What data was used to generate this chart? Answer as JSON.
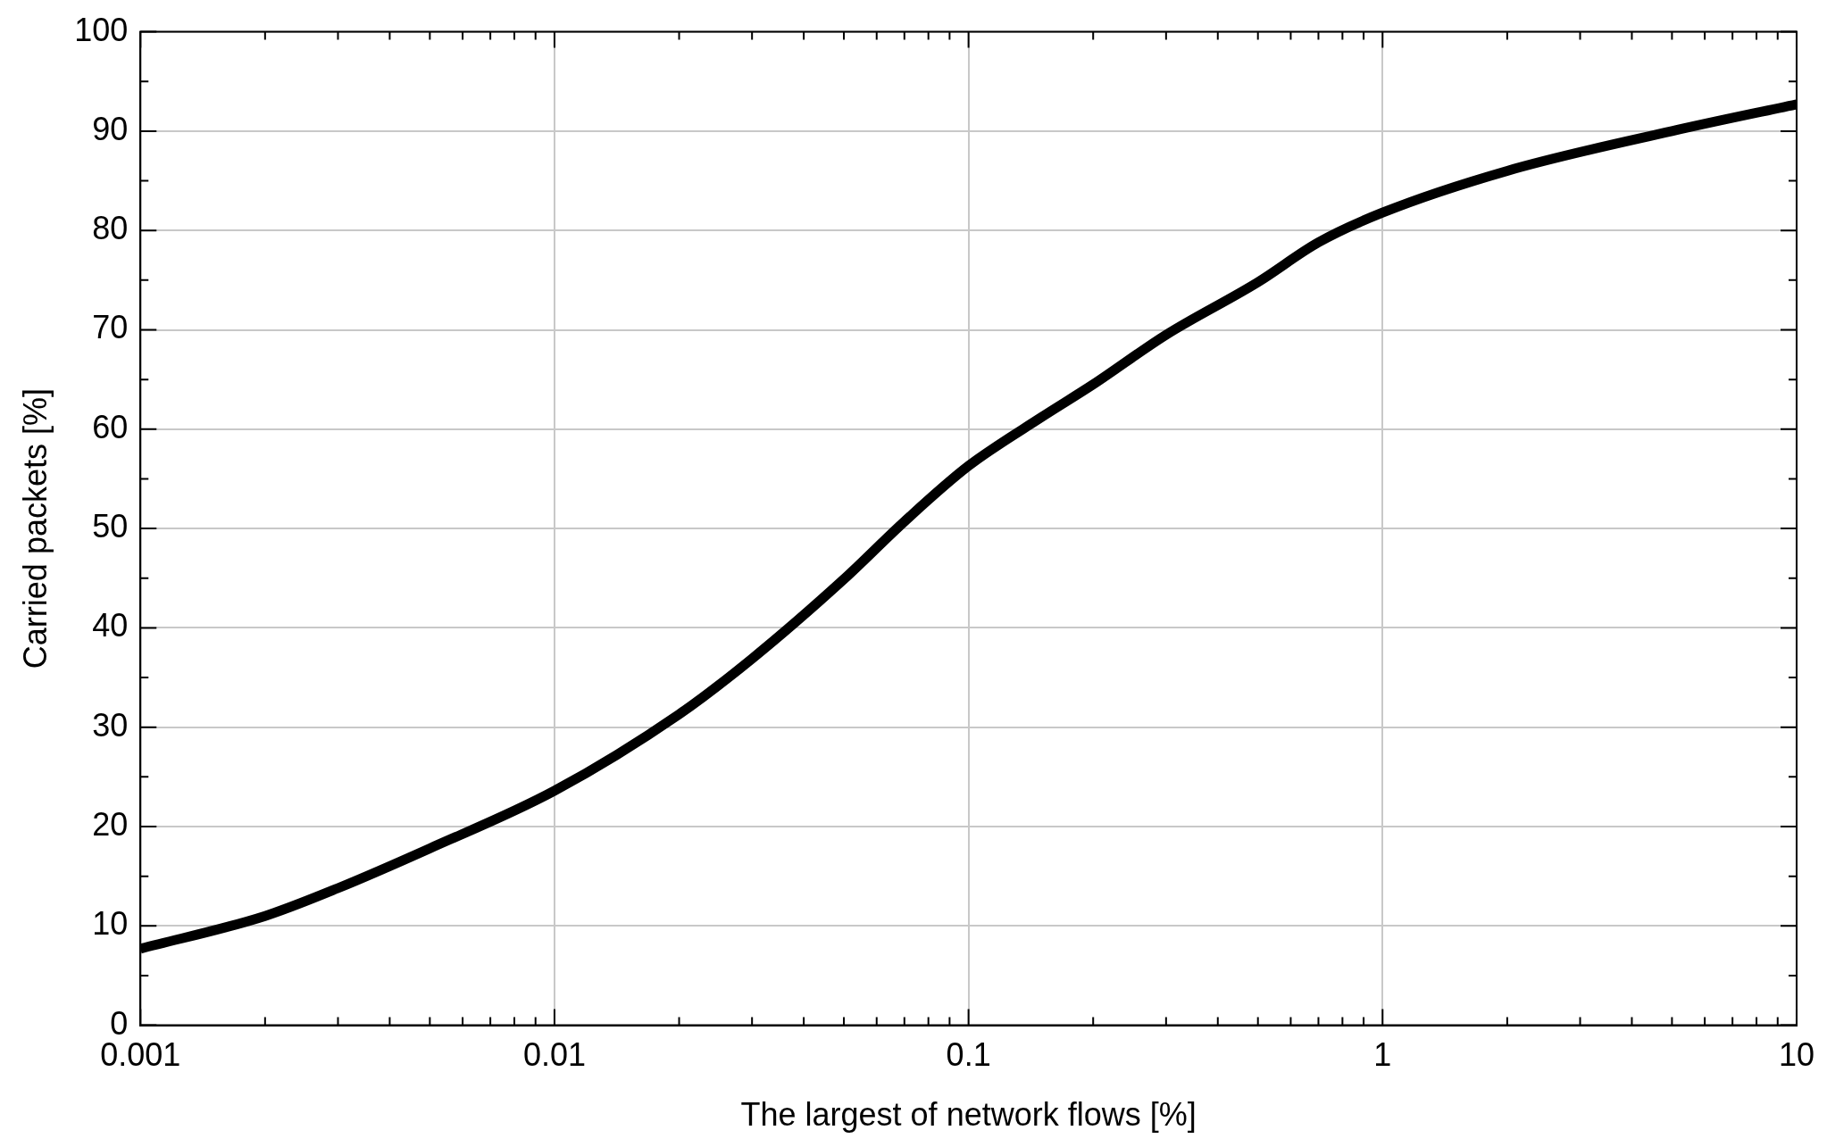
{
  "chart_data": {
    "type": "line",
    "xlabel": "The largest of network flows [%]",
    "ylabel": "Carried packets [%]",
    "log": "x",
    "grid": true,
    "legend": false,
    "marker": "none",
    "line_style": "solid",
    "x": [
      0.001,
      0.002,
      0.003,
      0.005,
      0.01,
      0.02,
      0.03,
      0.05,
      0.07,
      0.1,
      0.15,
      0.2,
      0.3,
      0.5,
      0.7,
      1,
      2,
      5,
      10
    ],
    "series": [
      {
        "color": "#000000",
        "values": [
          7.7,
          11,
          13.8,
          17.8,
          23.6,
          31.3,
          36.9,
          44.9,
          50.7,
          56.3,
          61.2,
          64.5,
          69.5,
          74.8,
          78.8,
          81.8,
          86,
          90,
          92.7
        ]
      }
    ],
    "xlim": [
      0.001,
      10
    ],
    "ylim": [
      0,
      100
    ],
    "xticks": [
      {
        "value": 0.001,
        "label": "0.001"
      },
      {
        "value": 0.002,
        "label": null
      },
      {
        "value": 0.003,
        "label": null
      },
      {
        "value": 0.004,
        "label": null
      },
      {
        "value": 0.005,
        "label": null
      },
      {
        "value": 0.006,
        "label": null
      },
      {
        "value": 0.007,
        "label": null
      },
      {
        "value": 0.008,
        "label": null
      },
      {
        "value": 0.009,
        "label": null
      },
      {
        "value": 0.01,
        "label": "0.01"
      },
      {
        "value": 0.02,
        "label": null
      },
      {
        "value": 0.03,
        "label": null
      },
      {
        "value": 0.04,
        "label": null
      },
      {
        "value": 0.05,
        "label": null
      },
      {
        "value": 0.06,
        "label": null
      },
      {
        "value": 0.07,
        "label": null
      },
      {
        "value": 0.08,
        "label": null
      },
      {
        "value": 0.09,
        "label": null
      },
      {
        "value": 0.1,
        "label": "0.1"
      },
      {
        "value": 0.2,
        "label": null
      },
      {
        "value": 0.3,
        "label": null
      },
      {
        "value": 0.4,
        "label": null
      },
      {
        "value": 0.5,
        "label": null
      },
      {
        "value": 0.6,
        "label": null
      },
      {
        "value": 0.7,
        "label": null
      },
      {
        "value": 0.8,
        "label": null
      },
      {
        "value": 0.9,
        "label": null
      },
      {
        "value": 1,
        "label": "1"
      },
      {
        "value": 2,
        "label": null
      },
      {
        "value": 3,
        "label": null
      },
      {
        "value": 4,
        "label": null
      },
      {
        "value": 5,
        "label": null
      },
      {
        "value": 6,
        "label": null
      },
      {
        "value": 7,
        "label": null
      },
      {
        "value": 8,
        "label": null
      },
      {
        "value": 9,
        "label": null
      },
      {
        "value": 10,
        "label": "10"
      }
    ],
    "yticks": [
      0,
      {
        "value": 5,
        "label": null
      },
      10,
      {
        "value": 15,
        "label": null
      },
      20,
      {
        "value": 25,
        "label": null
      },
      30,
      {
        "value": 35,
        "label": null
      },
      40,
      {
        "value": 45,
        "label": null
      },
      50,
      {
        "value": 55,
        "label": null
      },
      60,
      {
        "value": 65,
        "label": null
      },
      70,
      {
        "value": 75,
        "label": null
      },
      80,
      {
        "value": 85,
        "label": null
      },
      90,
      {
        "value": 95,
        "label": null
      },
      100
    ]
  }
}
